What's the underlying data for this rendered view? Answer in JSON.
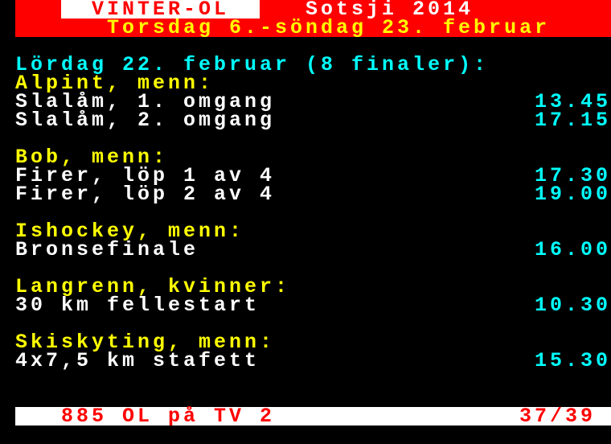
{
  "header": {
    "box_label": "VINTER-OL",
    "title": "Sotsji 2014",
    "subtitle": "Torsdag 6.-söndag 23. februar"
  },
  "day_heading": "Lördag 22. februar (8 finaler):",
  "sections": [
    {
      "sport": "Alpint, menn:",
      "events": [
        {
          "name": "Slalåm, 1. omgang",
          "time": "13.45"
        },
        {
          "name": "Slalåm, 2. omgang",
          "time": "17.15"
        }
      ]
    },
    {
      "sport": "Bob, menn:",
      "events": [
        {
          "name": "Firer, löp 1 av 4",
          "time": "17.30"
        },
        {
          "name": "Firer, löp 2 av 4",
          "time": "19.00"
        }
      ]
    },
    {
      "sport": "Ishockey, menn:",
      "events": [
        {
          "name": "Bronsefinale",
          "time": "16.00"
        }
      ]
    },
    {
      "sport": "Langrenn, kvinner:",
      "events": [
        {
          "name": "30 km fellestart",
          "time": "10.30"
        }
      ]
    },
    {
      "sport": "Skiskyting, menn:",
      "events": [
        {
          "name": "4x7,5 km stafett",
          "time": "15.30"
        }
      ]
    }
  ],
  "footer": {
    "label": "885 OL på TV 2",
    "page": "37/39"
  },
  "colors": {
    "header_bg": "#ff0000",
    "heading": "#00ffff",
    "sport": "#ffff00",
    "event": "#ffffff",
    "time": "#00ffff",
    "footer_bg": "#ffffff",
    "footer_text": "#ff0000"
  }
}
